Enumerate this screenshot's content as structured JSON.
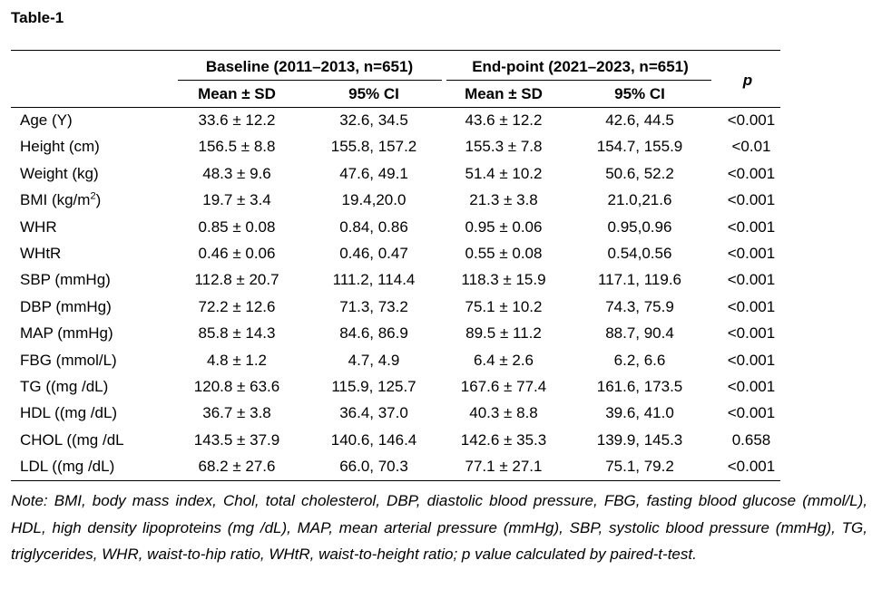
{
  "title": "Table-1",
  "header": {
    "baseline_group": "Baseline (2011–2013, n=651)",
    "endpoint_group": "End-point (2021–2023, n=651)",
    "p_label": "p",
    "mean_sd": "Mean ± SD",
    "ci": "95% CI"
  },
  "rows": [
    {
      "label": "Age (Y)",
      "b_mean": "33.6 ± 12.2",
      "b_ci": "32.6, 34.5",
      "e_mean": "43.6 ± 12.2",
      "e_ci": "42.6, 44.5",
      "p": "<0.001"
    },
    {
      "label": "Height (cm)",
      "b_mean": "156.5 ± 8.8",
      "b_ci": "155.8, 157.2",
      "e_mean": "155.3 ± 7.8",
      "e_ci": "154.7, 155.9",
      "p": "<0.01"
    },
    {
      "label": "Weight (kg)",
      "b_mean": "48.3 ± 9.6",
      "b_ci": "47.6, 49.1",
      "e_mean": "51.4 ± 10.2",
      "e_ci": "50.6, 52.2",
      "p": "<0.001"
    },
    {
      "label": "BMI (kg/m",
      "label_sup": "2",
      "label_after": ")",
      "b_mean": "19.7 ± 3.4",
      "b_ci": "19.4,20.0",
      "e_mean": "21.3 ± 3.8",
      "e_ci": "21.0,21.6",
      "p": "<0.001"
    },
    {
      "label": "WHR",
      "b_mean": "0.85 ± 0.08",
      "b_ci": "0.84, 0.86",
      "e_mean": "0.95 ± 0.06",
      "e_ci": "0.95,0.96",
      "p": "<0.001"
    },
    {
      "label": "WHtR",
      "b_mean": "0.46 ± 0.06",
      "b_ci": "0.46, 0.47",
      "e_mean": "0.55 ± 0.08",
      "e_ci": "0.54,0.56",
      "p": "<0.001"
    },
    {
      "label": "SBP (mmHg)",
      "b_mean": "112.8 ± 20.7",
      "b_ci": "111.2, 114.4",
      "e_mean": "118.3 ± 15.9",
      "e_ci": "117.1, 119.6",
      "p": "<0.001"
    },
    {
      "label": "DBP (mmHg)",
      "b_mean": "72.2 ± 12.6",
      "b_ci": "71.3, 73.2",
      "e_mean": "75.1 ± 10.2",
      "e_ci": "74.3, 75.9",
      "p": "<0.001"
    },
    {
      "label": "MAP (mmHg)",
      "b_mean": "85.8 ± 14.3",
      "b_ci": "84.6, 86.9",
      "e_mean": "89.5 ± 11.2",
      "e_ci": "88.7, 90.4",
      "p": "<0.001"
    },
    {
      "label": "FBG (mmol/L)",
      "b_mean": "4.8 ± 1.2",
      "b_ci": "4.7, 4.9",
      "e_mean": "6.4 ± 2.6",
      "e_ci": "6.2, 6.6",
      "p": "<0.001"
    },
    {
      "label": "TG ((mg /dL)",
      "b_mean": "120.8 ± 63.6",
      "b_ci": "115.9, 125.7",
      "e_mean": "167.6 ± 77.4",
      "e_ci": "161.6, 173.5",
      "p": "<0.001"
    },
    {
      "label": "HDL ((mg /dL)",
      "b_mean": "36.7 ± 3.8",
      "b_ci": "36.4, 37.0",
      "e_mean": "40.3 ± 8.8",
      "e_ci": "39.6, 41.0",
      "p": "<0.001"
    },
    {
      "label": "CHOL ((mg /dL",
      "b_mean": "143.5 ± 37.9",
      "b_ci": "140.6, 146.4",
      "e_mean": "142.6 ± 35.3",
      "e_ci": "139.9, 145.3",
      "p": "0.658"
    },
    {
      "label": "LDL ((mg /dL)",
      "b_mean": "68.2 ±  27.6",
      "b_ci": "66.0, 70.3",
      "e_mean": "77.1 ± 27.1",
      "e_ci": "75.1, 79.2",
      "p": "<0.001"
    }
  ],
  "note": "Note: BMI, body mass index, Chol, total cholesterol, DBP, diastolic blood pressure, FBG, fasting blood glucose (mmol/L), HDL, high density lipoproteins (mg /dL), MAP, mean arterial pressure (mmHg), SBP, systolic blood pressure (mmHg), TG, triglycerides, WHR, waist-to-hip ratio, WHtR, waist-to-height ratio; p value calculated by paired-t-test."
}
